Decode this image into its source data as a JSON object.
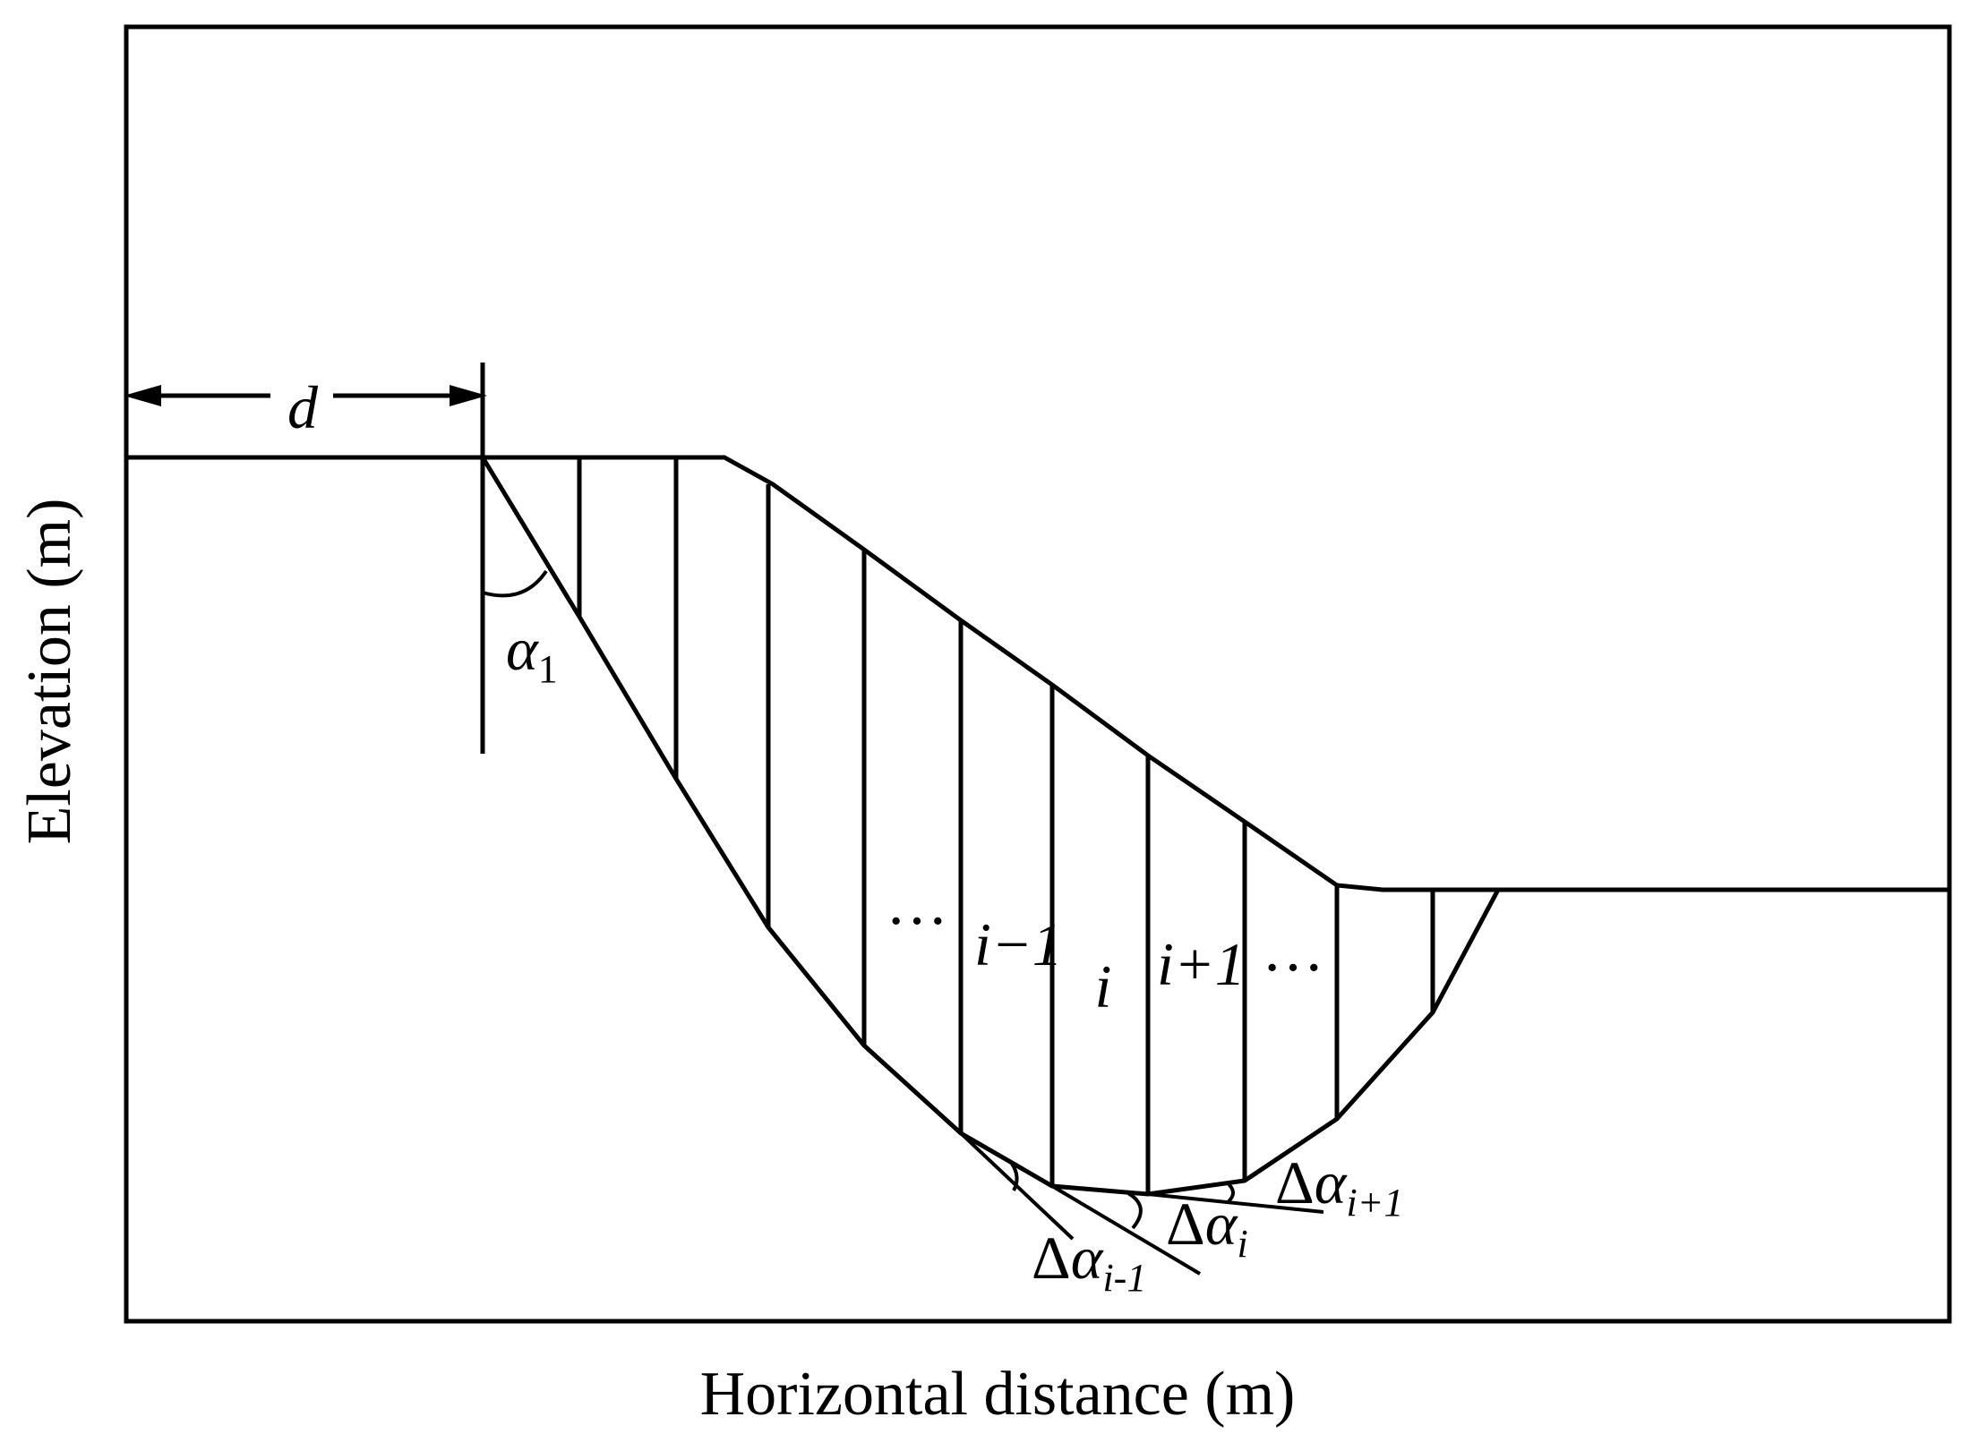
{
  "axes": {
    "xlabel": "Horizontal distance (m)",
    "ylabel": "Elevation (m)"
  },
  "labels": {
    "d": "d",
    "alpha": "α",
    "alpha_sub": "1",
    "dots_left": "···",
    "dots_right": "···",
    "i_minus_1": "i−1",
    "i": "i",
    "i_plus_1": "i+1",
    "delta": "Δ",
    "alpha_i": "α",
    "i_sub": "i",
    "im1_sub": "i-1",
    "ip1_sub": "i+1"
  }
}
